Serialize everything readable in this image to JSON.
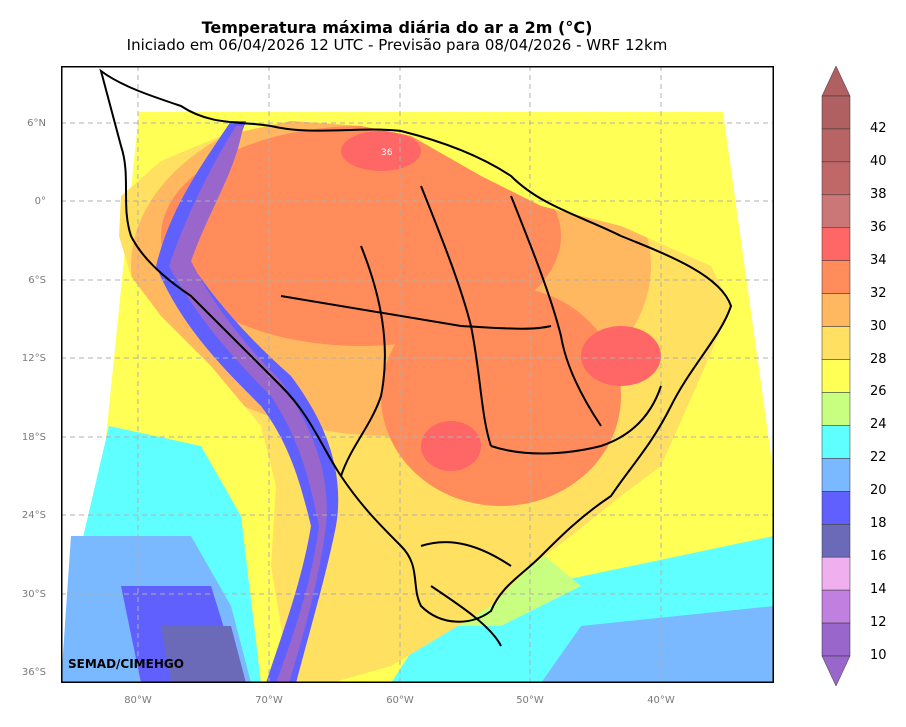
{
  "title": "Temperatura máxima diária do ar a 2m (°C)",
  "subtitle": "Iniciado em 06/04/2026 12 UTC - Previsão para 08/04/2026 - WRF 12km",
  "credit": "SEMAD/CIMEHGO",
  "lat_labels": [
    "6°N",
    "0°",
    "6°S",
    "12°S",
    "18°S",
    "24°S",
    "30°S",
    "36°S"
  ],
  "lon_labels": [
    "80°W",
    "70°W",
    "60°W",
    "50°W",
    "40°W"
  ],
  "map_annotation": "36",
  "colorbar": {
    "labels": [
      "42",
      "40",
      "38",
      "36",
      "34",
      "32",
      "30",
      "28",
      "26",
      "24",
      "22",
      "20",
      "18",
      "16",
      "14",
      "12",
      "10"
    ],
    "colors": [
      "#b06060",
      "#b86464",
      "#c06868",
      "#cc7777",
      "#ff6666",
      "#ff8c5a",
      "#ffb860",
      "#ffe060",
      "#ffff55",
      "#c8ff80",
      "#60ffff",
      "#7ab8ff",
      "#6060ff",
      "#6a6ab8",
      "#f0b0f0",
      "#c080e0",
      "#9966cc"
    ],
    "top_triangle_color": "#b06060",
    "bottom_triangle_color": "#9966cc"
  }
}
